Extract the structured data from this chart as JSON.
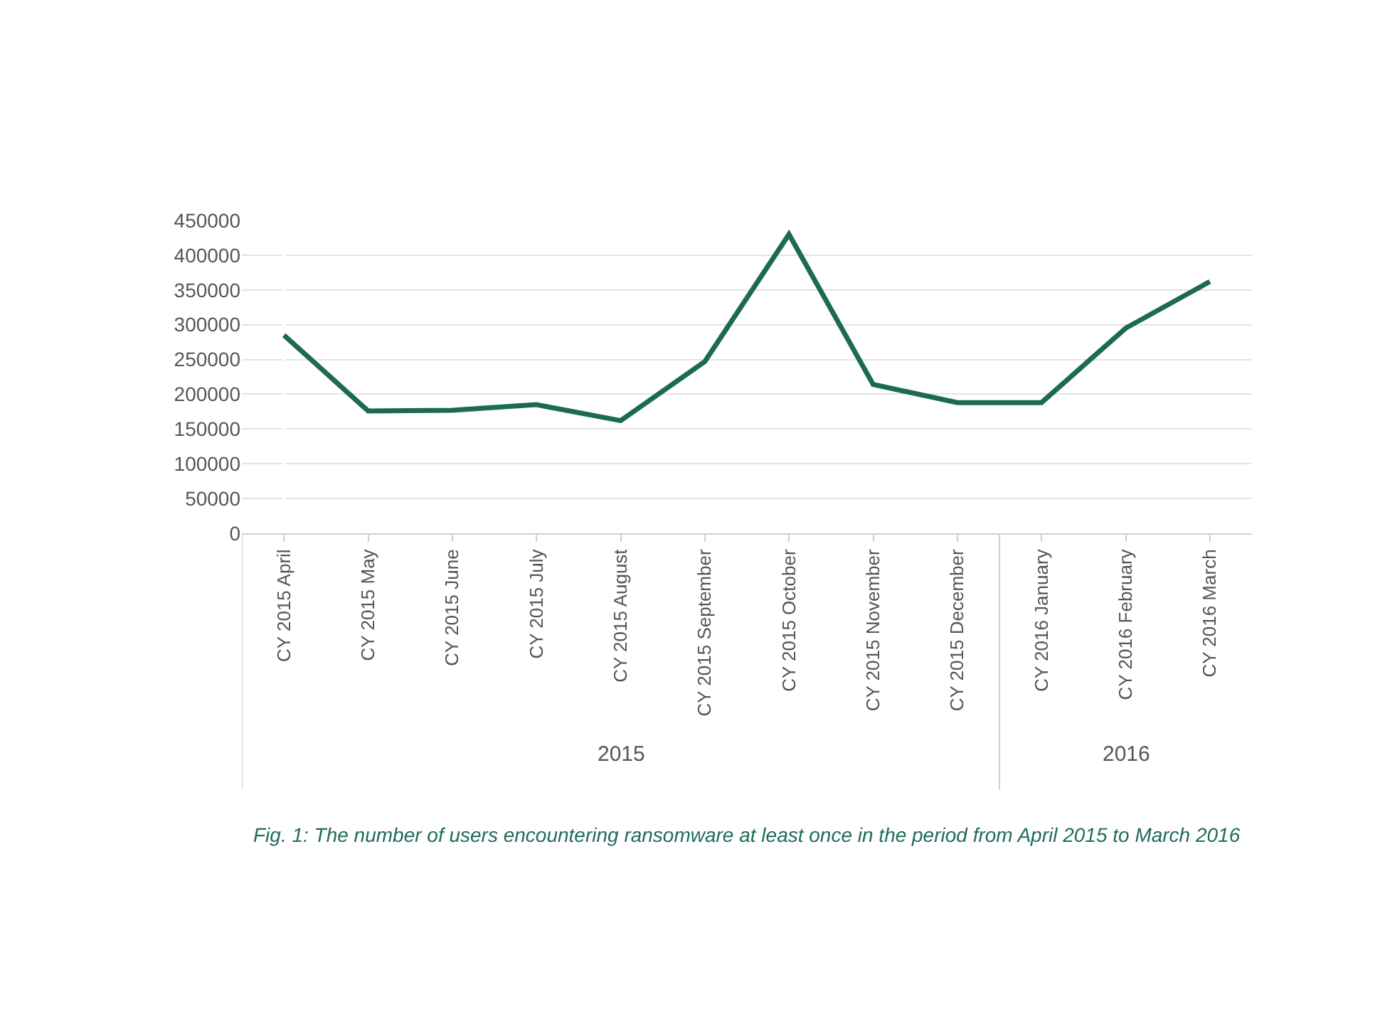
{
  "chart_data": {
    "type": "line",
    "categories": [
      "CY 2015 April",
      "CY 2015 May",
      "CY 2015 June",
      "CY 2015 July",
      "CY 2015 August",
      "CY 2015 September",
      "CY 2015 October",
      "CY 2015 November",
      "CY 2015 December",
      "CY 2016 January",
      "CY 2016 February",
      "CY 2016 March"
    ],
    "series": [
      {
        "color": "#1d6b4f",
        "values": [
          285000,
          176000,
          177000,
          185000,
          162000,
          247000,
          430000,
          214000,
          188000,
          188000,
          295000,
          362000
        ]
      }
    ],
    "ylim": [
      0,
      450000
    ],
    "yticks": [
      0,
      50000,
      100000,
      150000,
      200000,
      250000,
      300000,
      350000,
      400000,
      450000
    ],
    "grid": "y",
    "marker": "none",
    "line_style": "solid",
    "annotations": [
      "2015",
      "2016",
      "Fig. 1: The number of users encountering ransomware at least once in the period from April 2015 to March 2016"
    ]
  }
}
